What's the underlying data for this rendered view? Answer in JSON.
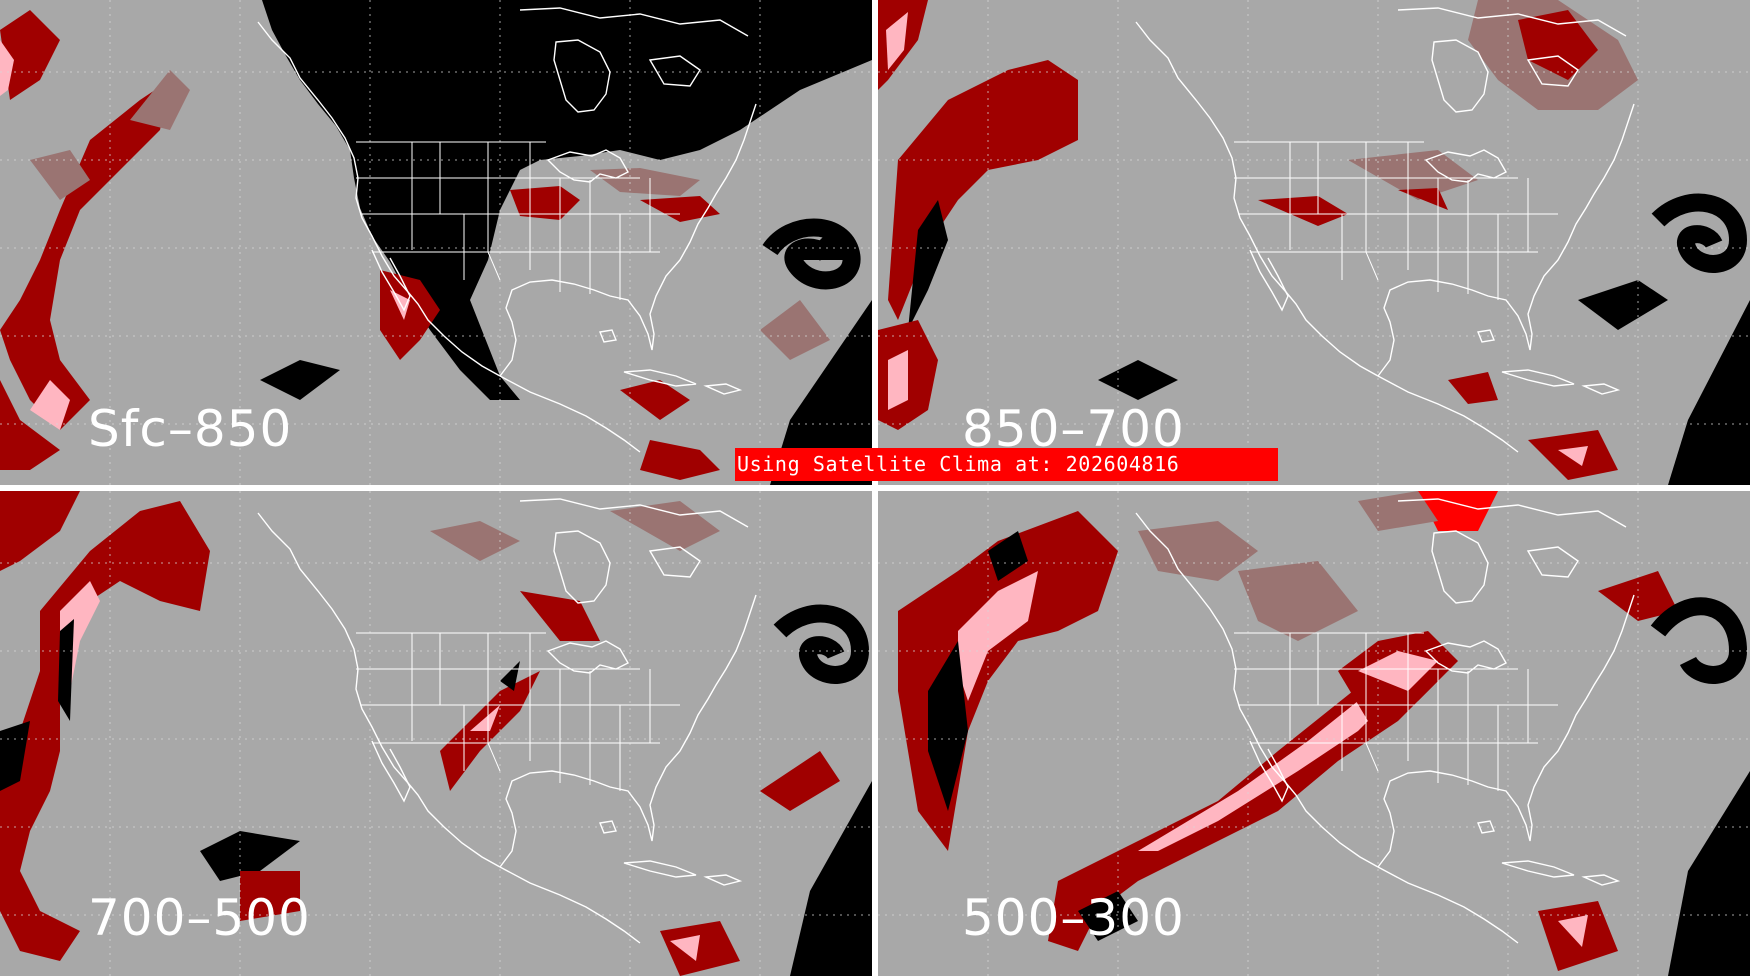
{
  "panels": [
    {
      "id": "sfc-850",
      "label": "Sfc–850"
    },
    {
      "id": "850-700",
      "label": "850–700"
    },
    {
      "id": "700-500",
      "label": "700–500"
    },
    {
      "id": "500-300",
      "label": "500–300"
    }
  ],
  "banner": {
    "text": "Using Satellite Clima at: 202604816"
  },
  "colors": {
    "background": "#a8a8a8",
    "land_mask": "#000000",
    "moisture_low": "#9a7472",
    "moisture_mid": "#a00000",
    "moisture_high": "#ffb6c1",
    "moisture_bright": "#ff0000",
    "boundaries": "#ffffff",
    "banner": "#ff0000"
  }
}
